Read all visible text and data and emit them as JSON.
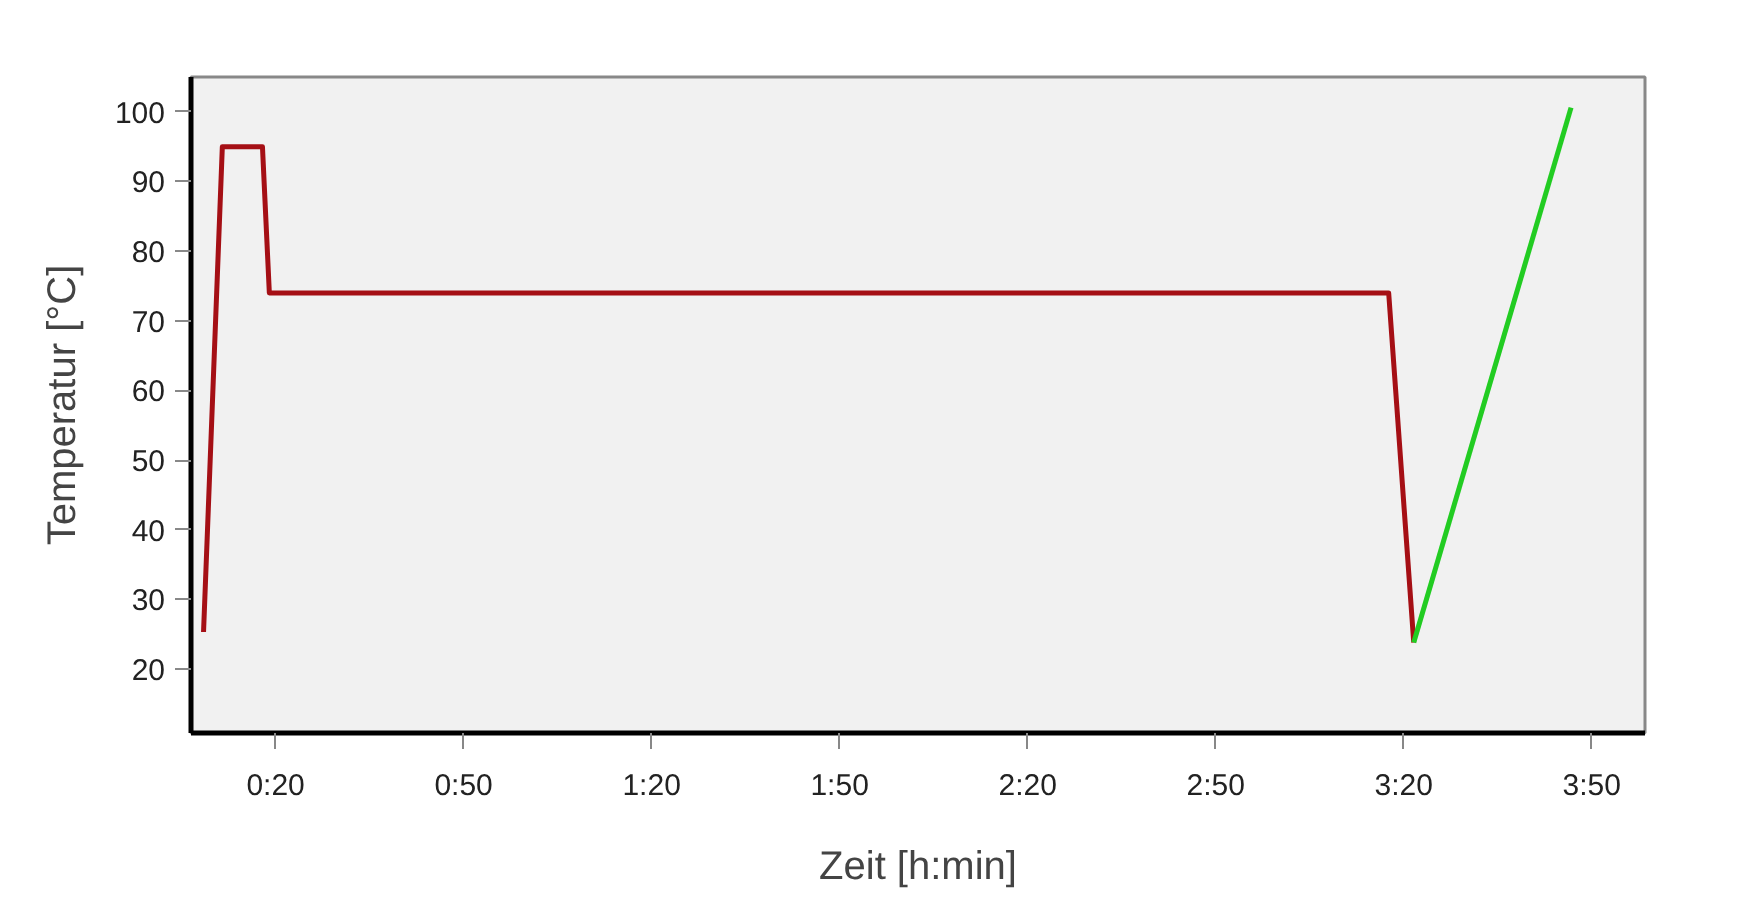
{
  "chart_data": {
    "type": "line",
    "xlabel": "Zeit [h:min]",
    "ylabel": "Temperatur [°C]",
    "xlim": [
      6.5,
      238.5
    ],
    "ylim": [
      10.8,
      105
    ],
    "xticks": [
      {
        "value": 20,
        "label": "0:20"
      },
      {
        "value": 50,
        "label": "0:50"
      },
      {
        "value": 80,
        "label": "1:20"
      },
      {
        "value": 110,
        "label": "1:50"
      },
      {
        "value": 140,
        "label": "2:20"
      },
      {
        "value": 170,
        "label": "2:50"
      },
      {
        "value": 200,
        "label": "3:20"
      },
      {
        "value": 230,
        "label": "3:50"
      }
    ],
    "yticks": [
      20,
      30,
      40,
      50,
      60,
      70,
      80,
      90,
      100
    ],
    "series": [
      {
        "color": "#a50f15",
        "x": [
          8.5,
          11.5,
          17.9,
          19.0,
          197.6,
          201.6
        ],
        "values": [
          25.3,
          95,
          95,
          74,
          74,
          23.8
        ]
      },
      {
        "color": "#22cc22",
        "x": [
          201.6,
          226.7
        ],
        "values": [
          23.8,
          100.6
        ]
      }
    ],
    "grid": false,
    "marker": "none",
    "line_style": "solid"
  }
}
